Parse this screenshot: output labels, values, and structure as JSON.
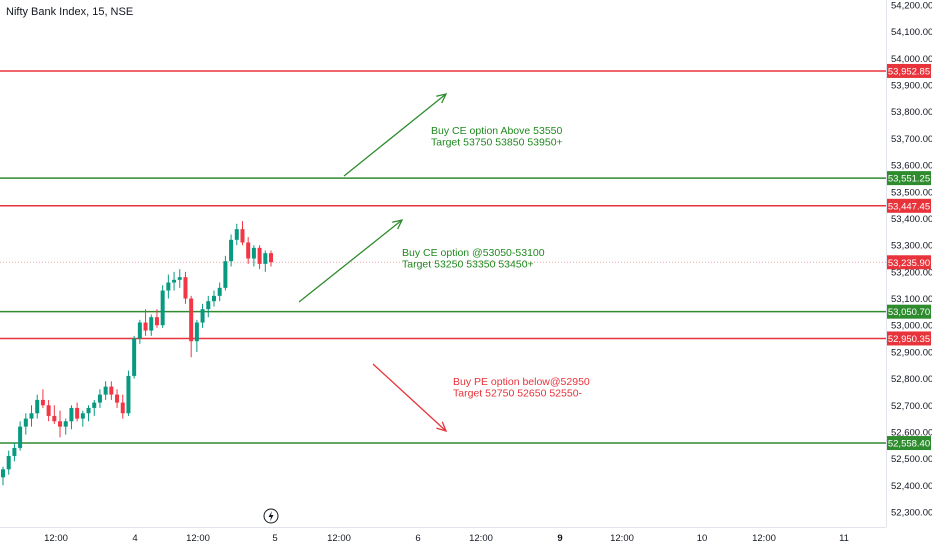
{
  "header": {
    "title": "Nifty Bank Index, 15, NSE"
  },
  "colors": {
    "up": "#089981",
    "down": "#f23645",
    "green_line": "#2e8b2e",
    "red_line": "#e8333b",
    "green_text": "#1f8a1f",
    "red_text": "#e8333b",
    "axis_text": "#131722",
    "price_tag_text": "#ffffff"
  },
  "chart_data": {
    "type": "candlestick",
    "title": "Nifty Bank Index, 15, NSE",
    "y_ticks": [
      "54,200.00",
      "54,100.00",
      "54,000.00",
      "53,900.00",
      "53,800.00",
      "53,700.00",
      "53,600.00",
      "53,500.00",
      "53,400.00",
      "53,300.00",
      "53,200.00",
      "53,100.00",
      "53,000.00",
      "52,900.00",
      "52,800.00",
      "52,700.00",
      "52,600.00",
      "52,500.00",
      "52,400.00",
      "52,300.00"
    ],
    "y_tick_values": [
      54200,
      54100,
      54000,
      53900,
      53800,
      53700,
      53600,
      53500,
      53400,
      53300,
      53200,
      53100,
      53000,
      52900,
      52800,
      52700,
      52600,
      52500,
      52400,
      52300
    ],
    "ylim": [
      52250,
      54225
    ],
    "x_ticks": [
      "12:00",
      "4",
      "12:00",
      "5",
      "12:00",
      "6",
      "12:00",
      "9",
      "12:00",
      "10",
      "12:00",
      "11"
    ],
    "bold_x_ticks": [
      "9"
    ],
    "horizontal_levels": [
      {
        "value": 53952.85,
        "label": "53,952.85",
        "color": "red"
      },
      {
        "value": 53551.25,
        "label": "53,551.25",
        "color": "green"
      },
      {
        "value": 53447.45,
        "label": "53,447.45",
        "color": "red"
      },
      {
        "value": 53235.9,
        "label": "53,235.90",
        "color": "red",
        "dotted": true
      },
      {
        "value": 53050.7,
        "label": "53,050.70",
        "color": "green"
      },
      {
        "value": 52950.35,
        "label": "52,950.35",
        "color": "red"
      },
      {
        "value": 52558.4,
        "label": "52,558.40",
        "color": "green"
      }
    ],
    "annotations": [
      {
        "lines": [
          "Buy CE option Above 53550",
          "Target 53750 53850 53950+"
        ],
        "color": "green"
      },
      {
        "lines": [
          "Buy CE option @53050-53100",
          "Target 53250 53350 53450+"
        ],
        "color": "green"
      },
      {
        "lines": [
          "Buy PE option below@52950",
          "Target 52750 52650 52550-"
        ],
        "color": "red"
      }
    ],
    "candles": [
      {
        "o": 52430,
        "h": 52470,
        "l": 52400,
        "c": 52460
      },
      {
        "o": 52460,
        "h": 52530,
        "l": 52440,
        "c": 52510
      },
      {
        "o": 52510,
        "h": 52560,
        "l": 52490,
        "c": 52540
      },
      {
        "o": 52540,
        "h": 52640,
        "l": 52530,
        "c": 52620
      },
      {
        "o": 52620,
        "h": 52670,
        "l": 52590,
        "c": 52650
      },
      {
        "o": 52650,
        "h": 52700,
        "l": 52620,
        "c": 52670
      },
      {
        "o": 52670,
        "h": 52740,
        "l": 52650,
        "c": 52720
      },
      {
        "o": 52720,
        "h": 52760,
        "l": 52690,
        "c": 52700
      },
      {
        "o": 52700,
        "h": 52720,
        "l": 52640,
        "c": 52660
      },
      {
        "o": 52660,
        "h": 52700,
        "l": 52630,
        "c": 52640
      },
      {
        "o": 52640,
        "h": 52680,
        "l": 52580,
        "c": 52620
      },
      {
        "o": 52620,
        "h": 52650,
        "l": 52590,
        "c": 52640
      },
      {
        "o": 52640,
        "h": 52700,
        "l": 52610,
        "c": 52690
      },
      {
        "o": 52690,
        "h": 52710,
        "l": 52640,
        "c": 52650
      },
      {
        "o": 52650,
        "h": 52680,
        "l": 52620,
        "c": 52670
      },
      {
        "o": 52670,
        "h": 52700,
        "l": 52640,
        "c": 52690
      },
      {
        "o": 52690,
        "h": 52720,
        "l": 52660,
        "c": 52710
      },
      {
        "o": 52710,
        "h": 52760,
        "l": 52690,
        "c": 52740
      },
      {
        "o": 52740,
        "h": 52790,
        "l": 52720,
        "c": 52770
      },
      {
        "o": 52770,
        "h": 52790,
        "l": 52720,
        "c": 52740
      },
      {
        "o": 52740,
        "h": 52760,
        "l": 52690,
        "c": 52710
      },
      {
        "o": 52710,
        "h": 52740,
        "l": 52650,
        "c": 52670
      },
      {
        "o": 52670,
        "h": 52830,
        "l": 52660,
        "c": 52810
      },
      {
        "o": 52810,
        "h": 52960,
        "l": 52800,
        "c": 52950
      },
      {
        "o": 52950,
        "h": 53020,
        "l": 52930,
        "c": 53010
      },
      {
        "o": 53010,
        "h": 53060,
        "l": 52960,
        "c": 52980
      },
      {
        "o": 52980,
        "h": 53040,
        "l": 52960,
        "c": 53030
      },
      {
        "o": 53030,
        "h": 53060,
        "l": 52990,
        "c": 53000
      },
      {
        "o": 53000,
        "h": 53150,
        "l": 52990,
        "c": 53130
      },
      {
        "o": 53130,
        "h": 53190,
        "l": 53100,
        "c": 53160
      },
      {
        "o": 53160,
        "h": 53200,
        "l": 53130,
        "c": 53170
      },
      {
        "o": 53170,
        "h": 53210,
        "l": 53140,
        "c": 53180
      },
      {
        "o": 53180,
        "h": 53200,
        "l": 53080,
        "c": 53100
      },
      {
        "o": 53100,
        "h": 53110,
        "l": 52880,
        "c": 52940
      },
      {
        "o": 52940,
        "h": 53020,
        "l": 52900,
        "c": 53010
      },
      {
        "o": 53010,
        "h": 53080,
        "l": 52990,
        "c": 53060
      },
      {
        "o": 53060,
        "h": 53110,
        "l": 53030,
        "c": 53090
      },
      {
        "o": 53090,
        "h": 53130,
        "l": 53070,
        "c": 53110
      },
      {
        "o": 53110,
        "h": 53160,
        "l": 53090,
        "c": 53140
      },
      {
        "o": 53140,
        "h": 53260,
        "l": 53130,
        "c": 53240
      },
      {
        "o": 53240,
        "h": 53340,
        "l": 53220,
        "c": 53320
      },
      {
        "o": 53320,
        "h": 53380,
        "l": 53300,
        "c": 53360
      },
      {
        "o": 53360,
        "h": 53390,
        "l": 53300,
        "c": 53310
      },
      {
        "o": 53310,
        "h": 53330,
        "l": 53230,
        "c": 53250
      },
      {
        "o": 53250,
        "h": 53300,
        "l": 53220,
        "c": 53290
      },
      {
        "o": 53290,
        "h": 53300,
        "l": 53210,
        "c": 53230
      },
      {
        "o": 53230,
        "h": 53280,
        "l": 53200,
        "c": 53270
      },
      {
        "o": 53270,
        "h": 53280,
        "l": 53220,
        "c": 53236
      }
    ]
  }
}
